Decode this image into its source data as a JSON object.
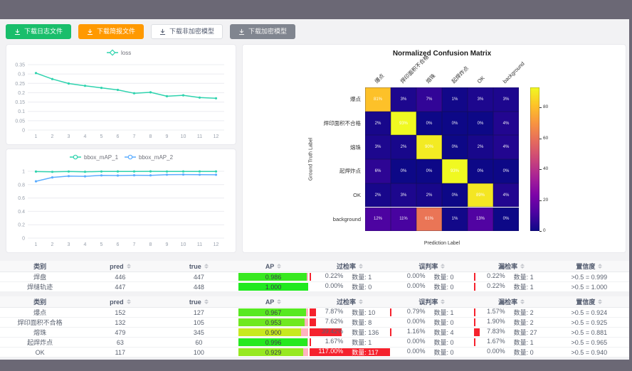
{
  "theme": {
    "frame_bg": "#6b6875",
    "content_bg": "#f2f2f4",
    "bar_red": "#f5222d",
    "ap_remainder_pink": "#ffb3bf"
  },
  "toolbar": {
    "buttons": [
      {
        "label": "下载日志文件",
        "bg": "#19be6b",
        "fg": "#ffffff",
        "border": "#19be6b"
      },
      {
        "label": "下载简报文件",
        "bg": "#ff9900",
        "fg": "#ffffff",
        "border": "#ff9900"
      },
      {
        "label": "下载非加密模型",
        "bg": "#ffffff",
        "fg": "#515a6e",
        "border": "#dcdee2"
      },
      {
        "label": "下载加密模型",
        "bg": "#80858f",
        "fg": "#f3f3f3",
        "border": "#80858f"
      }
    ]
  },
  "chart_data": [
    {
      "id": "loss",
      "type": "line",
      "legend_position": "top",
      "grid": true,
      "x": [
        1,
        2,
        3,
        4,
        5,
        6,
        7,
        8,
        9,
        10,
        11,
        12
      ],
      "ylim": [
        0,
        0.35
      ],
      "yticks": [
        0,
        0.05,
        0.1,
        0.15,
        0.2,
        0.25,
        0.3,
        0.35
      ],
      "series": [
        {
          "name": "loss",
          "color": "#2fd3ae",
          "symbol": "diamond",
          "values": [
            0.305,
            0.273,
            0.249,
            0.237,
            0.226,
            0.215,
            0.197,
            0.202,
            0.181,
            0.186,
            0.174,
            0.17
          ]
        }
      ]
    },
    {
      "id": "bbox_map",
      "type": "line",
      "legend_position": "top",
      "grid": true,
      "x": [
        1,
        2,
        3,
        4,
        5,
        6,
        7,
        8,
        9,
        10,
        11,
        12
      ],
      "ylim": [
        0,
        1
      ],
      "yticks": [
        0,
        0.2,
        0.4,
        0.6,
        0.8,
        1
      ],
      "series": [
        {
          "name": "bbox_mAP_1",
          "color": "#2fd3ae",
          "symbol": "circle",
          "values": [
            0.996,
            0.992,
            0.997,
            0.993,
            0.997,
            0.998,
            0.998,
            0.999,
            0.997,
            0.998,
            0.998,
            0.998
          ]
        },
        {
          "name": "bbox_mAP_2",
          "color": "#5cadff",
          "symbol": "circle",
          "values": [
            0.85,
            0.908,
            0.928,
            0.924,
            0.938,
            0.936,
            0.94,
            0.939,
            0.949,
            0.951,
            0.949,
            0.948
          ]
        }
      ]
    },
    {
      "id": "confusion_matrix",
      "type": "heatmap",
      "title": "Normalized Confusion Matrix",
      "xlabel": "Prediction Label",
      "ylabel": "Ground Truth Label",
      "labels": [
        "爆点",
        "焊印面积不合格",
        "熔珠",
        "起焊炸点",
        "OK",
        "background"
      ],
      "unit": "%",
      "vmin": 0,
      "vmax": 93,
      "colormap": "plasma",
      "colorbar_ticks": [
        0,
        20,
        40,
        60,
        80
      ],
      "matrix": [
        [
          81,
          3,
          7,
          1,
          3,
          3
        ],
        [
          2,
          93,
          0,
          0,
          0,
          4
        ],
        [
          3,
          2,
          90,
          0,
          2,
          4
        ],
        [
          6,
          0,
          0,
          93,
          0,
          0
        ],
        [
          2,
          3,
          2,
          0,
          89,
          4
        ],
        [
          12,
          11,
          61,
          1,
          13,
          0
        ]
      ]
    }
  ],
  "metrics_tables": {
    "columns": [
      {
        "key": "cls",
        "label": "类别",
        "sortable": false
      },
      {
        "key": "pred",
        "label": "pred",
        "sortable": true
      },
      {
        "key": "true",
        "label": "true",
        "sortable": true
      },
      {
        "key": "ap",
        "label": "AP",
        "sortable": true
      },
      {
        "key": "over",
        "label": "过检率",
        "sortable": true
      },
      {
        "key": "mis",
        "label": "误判率",
        "sortable": true
      },
      {
        "key": "miss",
        "label": "漏检率",
        "sortable": true
      },
      {
        "key": "conf",
        "label": "置信度",
        "sortable": true
      }
    ],
    "count_label": "数量",
    "groups": [
      {
        "rows": [
          {
            "cls": "焊盘",
            "pred": "446",
            "true": "447",
            "ap": {
              "value": 0.986,
              "text": "0.986"
            },
            "over": {
              "pct": 0.22,
              "text": "0.22%",
              "count": "数量: 1"
            },
            "mis": {
              "pct": 0.0,
              "text": "0.00%",
              "count": "数量: 0"
            },
            "miss": {
              "pct": 0.22,
              "text": "0.22%",
              "count": "数量: 1"
            },
            "conf": ">0.5 = 0.999"
          },
          {
            "cls": "焊缝轨迹",
            "pred": "447",
            "true": "448",
            "ap": {
              "value": 1.0,
              "text": "1.000"
            },
            "over": {
              "pct": 0.0,
              "text": "0.00%",
              "count": "数量: 0"
            },
            "mis": {
              "pct": 0.0,
              "text": "0.00%",
              "count": "数量: 0"
            },
            "miss": {
              "pct": 0.22,
              "text": "0.22%",
              "count": "数量: 1"
            },
            "conf": ">0.5 = 1.000"
          }
        ]
      },
      {
        "rows": [
          {
            "cls": "爆点",
            "pred": "152",
            "true": "127",
            "ap": {
              "value": 0.967,
              "text": "0.967"
            },
            "over": {
              "pct": 7.87,
              "text": "7.87%",
              "count": "数量: 10"
            },
            "mis": {
              "pct": 0.79,
              "text": "0.79%",
              "count": "数量: 1"
            },
            "miss": {
              "pct": 1.57,
              "text": "1.57%",
              "count": "数量: 2"
            },
            "conf": ">0.5 = 0.924"
          },
          {
            "cls": "焊印面积不合格",
            "pred": "132",
            "true": "105",
            "ap": {
              "value": 0.953,
              "text": "0.953"
            },
            "over": {
              "pct": 7.62,
              "text": "7.62%",
              "count": "数量: 8"
            },
            "mis": {
              "pct": 0.0,
              "text": "0.00%",
              "count": "数量: 0"
            },
            "miss": {
              "pct": 1.9,
              "text": "1.90%",
              "count": "数量: 2"
            },
            "conf": ">0.5 = 0.925"
          },
          {
            "cls": "熔珠",
            "pred": "479",
            "true": "345",
            "ap": {
              "value": 0.9,
              "text": "0.900"
            },
            "over": {
              "pct": 39.42,
              "text": "39.42%",
              "count": "数量: 136"
            },
            "mis": {
              "pct": 1.16,
              "text": "1.16%",
              "count": "数量: 4"
            },
            "miss": {
              "pct": 7.83,
              "text": "7.83%",
              "count": "数量: 27"
            },
            "conf": ">0.5 = 0.881"
          },
          {
            "cls": "起焊炸点",
            "pred": "63",
            "true": "60",
            "ap": {
              "value": 0.996,
              "text": "0.996"
            },
            "over": {
              "pct": 1.67,
              "text": "1.67%",
              "count": "数量: 1"
            },
            "mis": {
              "pct": 0.0,
              "text": "0.00%",
              "count": "数量: 0"
            },
            "miss": {
              "pct": 1.67,
              "text": "1.67%",
              "count": "数量: 1"
            },
            "conf": ">0.5 = 0.965"
          },
          {
            "cls": "OK",
            "pred": "117",
            "true": "100",
            "ap": {
              "value": 0.929,
              "text": "0.929"
            },
            "over": {
              "pct": 117.0,
              "text": "117.00%",
              "count": "数量: 117"
            },
            "mis": {
              "pct": 0.0,
              "text": "0.00%",
              "count": "数量: 0"
            },
            "miss": {
              "pct": 0.0,
              "text": "0.00%",
              "count": "数量: 0"
            },
            "conf": ">0.5 = 0.940"
          }
        ]
      }
    ]
  }
}
